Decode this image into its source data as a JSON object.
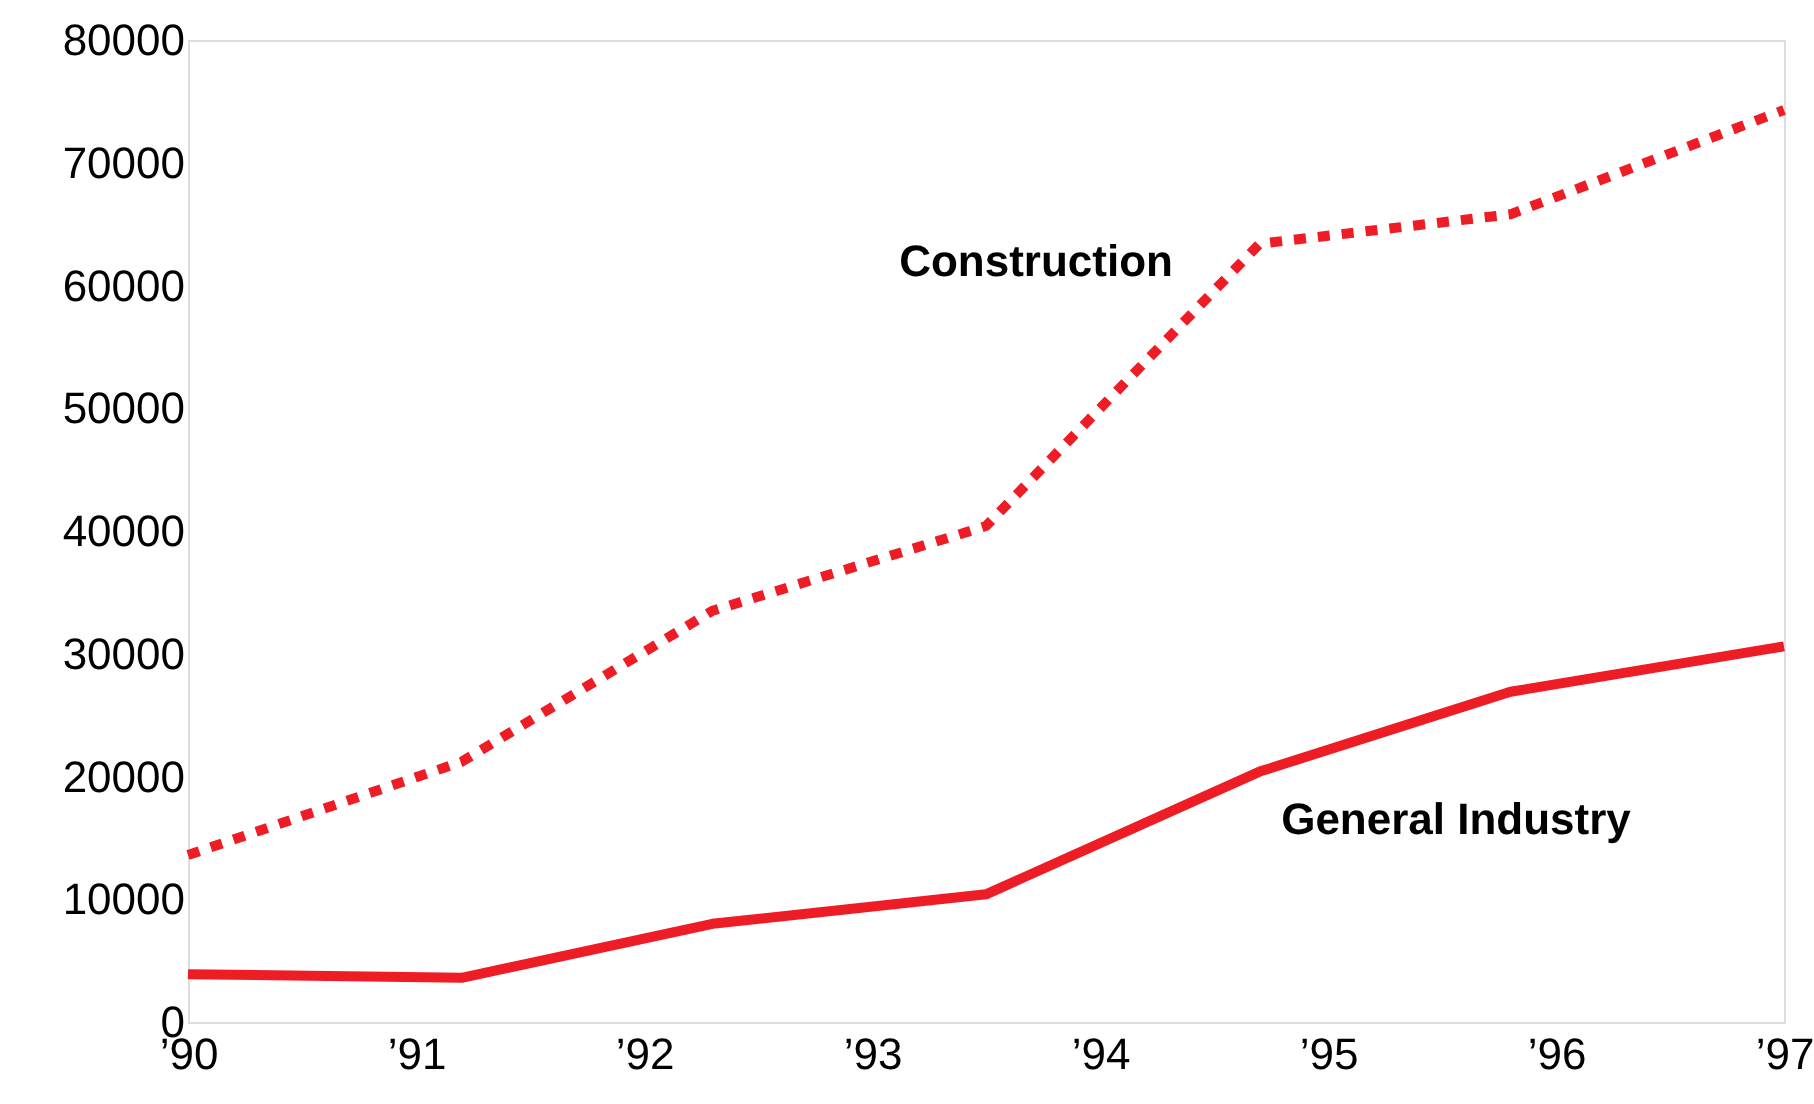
{
  "chart_data": {
    "type": "line",
    "x": [
      1990,
      1991.2,
      1992.3,
      1993.5,
      1994.7,
      1995.8,
      1997
    ],
    "series": [
      {
        "name": "Construction",
        "color": "#ee1c25",
        "line_style": "dotted",
        "values": [
          13600,
          21200,
          33500,
          40400,
          63400,
          65800,
          74300
        ]
      },
      {
        "name": "General Industry",
        "color": "#ee1c25",
        "line_style": "solid",
        "values": [
          3900,
          3600,
          8000,
          10400,
          20400,
          26900,
          30600
        ]
      }
    ],
    "xlim": [
      1990,
      1997
    ],
    "xticks": [
      {
        "value": 1990,
        "label": "’90"
      },
      {
        "value": 1991,
        "label": "’91"
      },
      {
        "value": 1992,
        "label": "’92"
      },
      {
        "value": 1993,
        "label": "’93"
      },
      {
        "value": 1994,
        "label": "’94"
      },
      {
        "value": 1995,
        "label": "’95"
      },
      {
        "value": 1996,
        "label": "’96"
      },
      {
        "value": 1997,
        "label": "’97"
      }
    ],
    "ylim": [
      0,
      80000
    ],
    "yticks": [
      0,
      10000,
      20000,
      30000,
      40000,
      50000,
      60000,
      70000,
      80000
    ],
    "grid": false,
    "marker": "none"
  }
}
